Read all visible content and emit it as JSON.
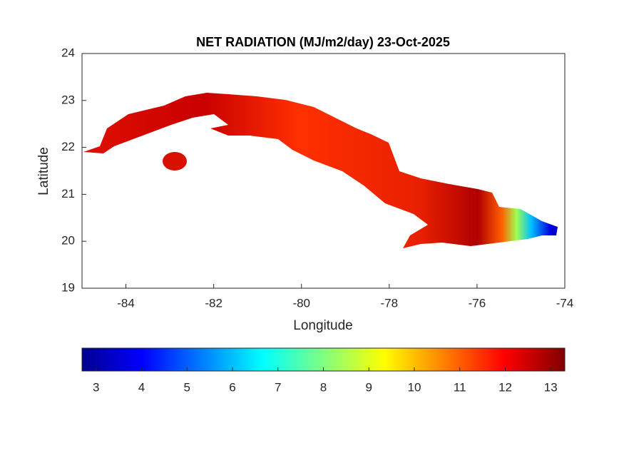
{
  "chart_data": {
    "type": "map",
    "title": "NET RADIATION (MJ/m2/day) 23-Oct-2025",
    "x_label": "Longitude",
    "y_label": "Latitude",
    "xlim": [
      -85,
      -74
    ],
    "xticks": [
      -84,
      -82,
      -80,
      -78,
      -76,
      -74
    ],
    "ylim": [
      19,
      24
    ],
    "yticks": [
      19,
      20,
      21,
      22,
      23,
      24
    ],
    "colorbar": {
      "clim": [
        2.69,
        13.31
      ],
      "ticks": [
        3,
        4,
        5,
        6,
        7,
        8,
        9,
        10,
        11,
        12,
        13
      ]
    }
  }
}
